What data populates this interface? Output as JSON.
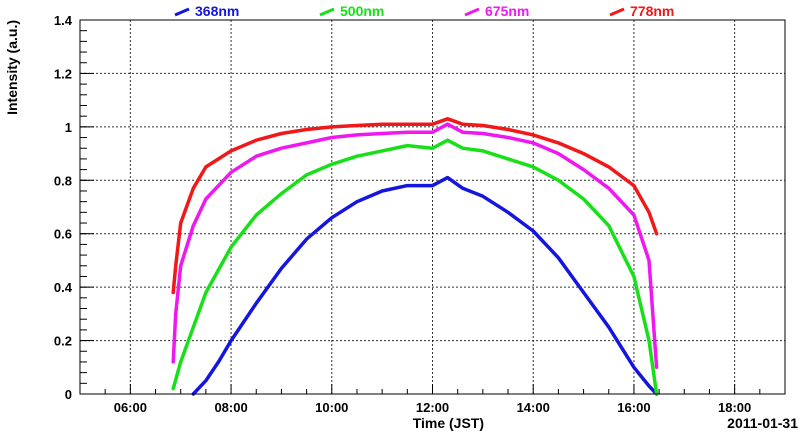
{
  "chart_data": {
    "type": "line",
    "title": "",
    "xlabel": "Time (JST)",
    "ylabel": "Intensity (a.u.)",
    "date_label": "2011-01-31",
    "xlim": [
      5,
      19
    ],
    "ylim": [
      0,
      1.4
    ],
    "x_ticks": [
      6,
      8,
      10,
      12,
      14,
      16,
      18
    ],
    "x_tick_labels": [
      "06:00",
      "08:00",
      "10:00",
      "12:00",
      "14:00",
      "16:00",
      "18:00"
    ],
    "y_ticks": [
      0,
      0.2,
      0.4,
      0.6,
      0.8,
      1,
      1.2,
      1.4
    ],
    "y_tick_labels": [
      "0",
      "0.2",
      "0.4",
      "0.6",
      "0.8",
      "1",
      "1.2",
      "1.4"
    ],
    "grid": true,
    "legend_position": "top",
    "series": [
      {
        "name": "368nm",
        "color": "#1515e0",
        "x": [
          7.25,
          7.5,
          7.75,
          8.0,
          8.5,
          9.0,
          9.5,
          10.0,
          10.5,
          11.0,
          11.5,
          12.0,
          12.3,
          12.6,
          13.0,
          13.5,
          14.0,
          14.5,
          15.0,
          15.5,
          16.0,
          16.3,
          16.45
        ],
        "y": [
          0.0,
          0.05,
          0.12,
          0.2,
          0.34,
          0.47,
          0.58,
          0.66,
          0.72,
          0.76,
          0.78,
          0.78,
          0.81,
          0.77,
          0.74,
          0.68,
          0.61,
          0.51,
          0.38,
          0.25,
          0.1,
          0.03,
          0.0
        ]
      },
      {
        "name": "500nm",
        "color": "#18e018",
        "x": [
          6.85,
          7.0,
          7.25,
          7.5,
          8.0,
          8.5,
          9.0,
          9.5,
          10.0,
          10.5,
          11.0,
          11.5,
          12.0,
          12.3,
          12.6,
          13.0,
          13.5,
          14.0,
          14.5,
          15.0,
          15.5,
          16.0,
          16.3,
          16.45
        ],
        "y": [
          0.02,
          0.12,
          0.25,
          0.38,
          0.55,
          0.67,
          0.75,
          0.82,
          0.86,
          0.89,
          0.91,
          0.93,
          0.92,
          0.95,
          0.92,
          0.91,
          0.88,
          0.85,
          0.8,
          0.73,
          0.63,
          0.44,
          0.2,
          0.0
        ]
      },
      {
        "name": "675nm",
        "color": "#f018f0",
        "x": [
          6.85,
          6.9,
          7.0,
          7.25,
          7.5,
          8.0,
          8.5,
          9.0,
          9.5,
          10.0,
          10.5,
          11.0,
          11.5,
          12.0,
          12.3,
          12.6,
          13.0,
          13.5,
          14.0,
          14.5,
          15.0,
          15.5,
          16.0,
          16.3,
          16.45
        ],
        "y": [
          0.12,
          0.3,
          0.48,
          0.63,
          0.73,
          0.83,
          0.89,
          0.92,
          0.94,
          0.96,
          0.97,
          0.975,
          0.98,
          0.98,
          1.01,
          0.98,
          0.975,
          0.96,
          0.94,
          0.9,
          0.84,
          0.77,
          0.67,
          0.5,
          0.1
        ]
      },
      {
        "name": "778nm",
        "color": "#f01818",
        "x": [
          6.85,
          6.9,
          7.0,
          7.25,
          7.5,
          8.0,
          8.5,
          9.0,
          9.5,
          10.0,
          10.5,
          11.0,
          11.5,
          12.0,
          12.3,
          12.6,
          13.0,
          13.5,
          14.0,
          14.5,
          15.0,
          15.5,
          16.0,
          16.3,
          16.45
        ],
        "y": [
          0.38,
          0.48,
          0.64,
          0.77,
          0.85,
          0.91,
          0.95,
          0.975,
          0.99,
          1.0,
          1.005,
          1.01,
          1.01,
          1.01,
          1.03,
          1.01,
          1.005,
          0.99,
          0.97,
          0.94,
          0.9,
          0.85,
          0.78,
          0.68,
          0.6
        ]
      }
    ]
  }
}
